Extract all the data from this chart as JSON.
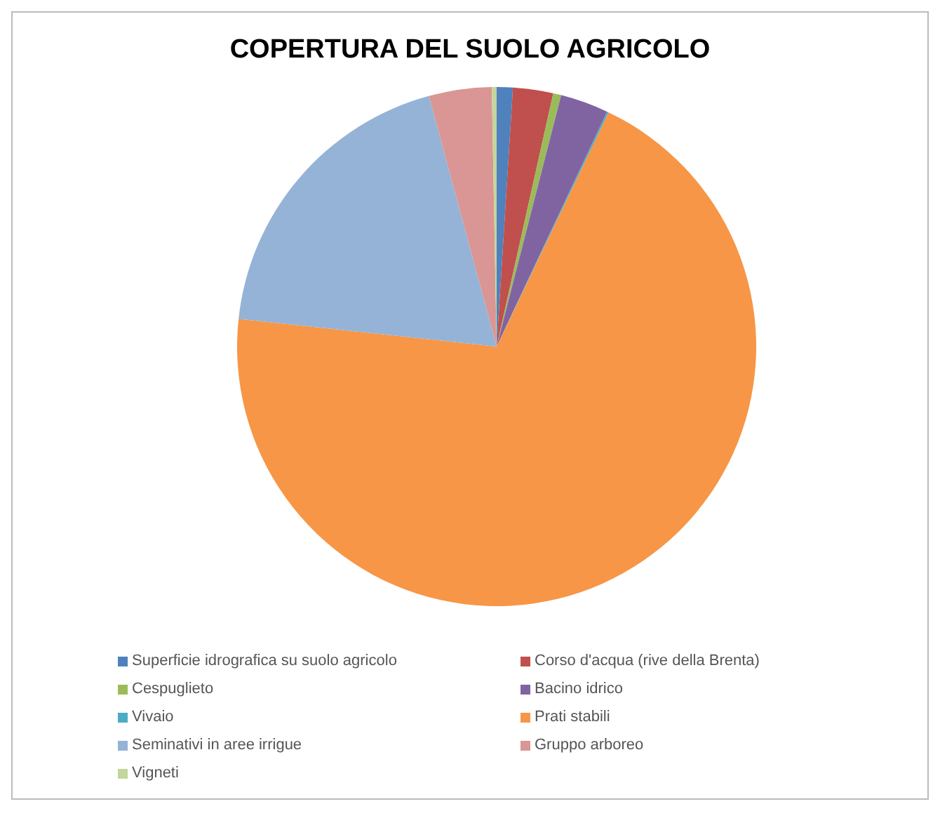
{
  "chart_data": {
    "type": "pie",
    "title": "COPERTURA DEL SUOLO AGRICOLO",
    "categories": [
      "Superficie idrografica su suolo agricolo",
      "Corso d'acqua (rive della Brenta)",
      "Cespuglieto",
      "Bacino idrico",
      "Vivaio",
      "Prati stabili",
      "Seminativi in aree irrigue",
      "Gruppo arboreo",
      "Vigneti"
    ],
    "values": [
      1,
      2.5,
      0.5,
      3,
      0.1,
      69.6,
      19.1,
      3.9,
      0.3
    ],
    "colors": [
      "#4f81bd",
      "#c0504d",
      "#9bbb59",
      "#8064a2",
      "#4bacc6",
      "#f79646",
      "#95b3d7",
      "#d99694",
      "#c3d69b"
    ],
    "legend": "bottom"
  }
}
